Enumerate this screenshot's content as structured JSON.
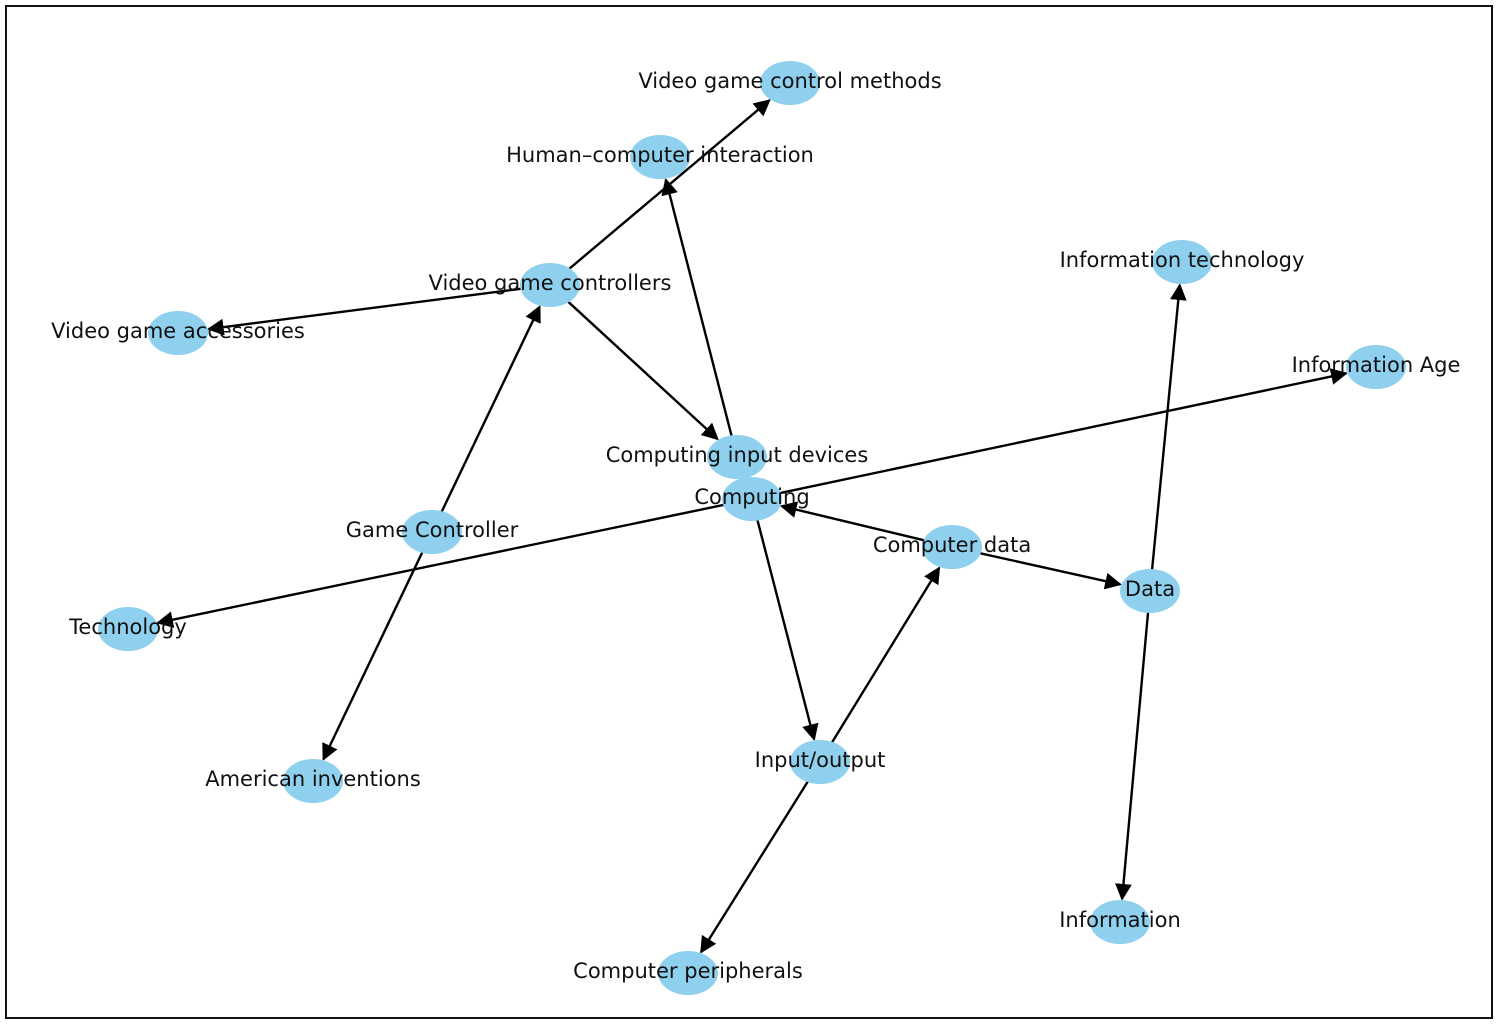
{
  "graph": {
    "node_color": "#8fd0ee",
    "edge_color": "#000000",
    "directed": true,
    "nodes": [
      {
        "id": "vgcm",
        "label": "Video game control methods"
      },
      {
        "id": "hci",
        "label": "Human–computer interaction"
      },
      {
        "id": "it",
        "label": "Information technology"
      },
      {
        "id": "vgc",
        "label": "Video game controllers"
      },
      {
        "id": "vga",
        "label": "Video game accessories"
      },
      {
        "id": "ia",
        "label": "Information Age"
      },
      {
        "id": "cid",
        "label": "Computing input devices"
      },
      {
        "id": "comp",
        "label": "Computing"
      },
      {
        "id": "gc",
        "label": "Game Controller"
      },
      {
        "id": "cd",
        "label": "Computer data"
      },
      {
        "id": "data",
        "label": "Data"
      },
      {
        "id": "tech",
        "label": "Technology"
      },
      {
        "id": "io",
        "label": "Input/output"
      },
      {
        "id": "ai",
        "label": "American inventions"
      },
      {
        "id": "info",
        "label": "Information"
      },
      {
        "id": "cp",
        "label": "Computer peripherals"
      }
    ],
    "edges": [
      {
        "source": "vgc",
        "target": "vgcm"
      },
      {
        "source": "vgc",
        "target": "vga"
      },
      {
        "source": "vgc",
        "target": "cid"
      },
      {
        "source": "cid",
        "target": "hci"
      },
      {
        "source": "gc",
        "target": "vgc"
      },
      {
        "source": "gc",
        "target": "ai"
      },
      {
        "source": "comp",
        "target": "ia"
      },
      {
        "source": "comp",
        "target": "tech"
      },
      {
        "source": "comp",
        "target": "io"
      },
      {
        "source": "cd",
        "target": "comp"
      },
      {
        "source": "cd",
        "target": "data"
      },
      {
        "source": "io",
        "target": "cd"
      },
      {
        "source": "io",
        "target": "cp"
      },
      {
        "source": "data",
        "target": "it"
      },
      {
        "source": "data",
        "target": "info"
      }
    ]
  }
}
